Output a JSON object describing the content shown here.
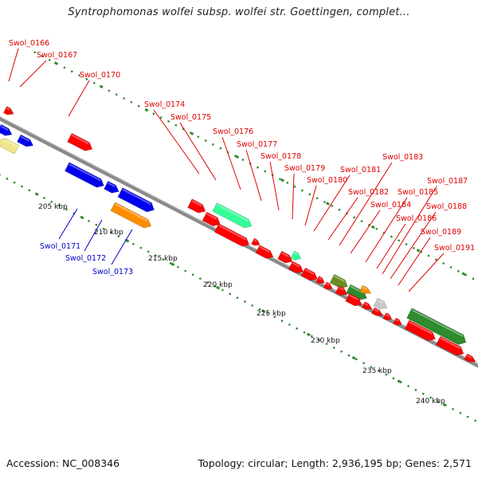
{
  "title": "Syntrophomonas wolfei subsp. wolfei str. Goettingen, complet...",
  "footer": {
    "accession": "Accession: NC_008346",
    "summary": "Topology: circular; Length: 2,936,195 bp; Genes: 2,571"
  },
  "colors": {
    "top_label": "#e00000",
    "bottom_label": "#0000cc",
    "backbone": "#8a8a8a",
    "tick_dot": "#2e8b2e",
    "cds_red": "#ff0000",
    "blue": "#0000ee",
    "orange": "#ff8c00",
    "green": "#2e8b2e",
    "light_green": "#33ff99",
    "olive": "#6b8e23",
    "pale_yellow": "#f0e68c",
    "gray": "#c8c8c8"
  },
  "scale_labels": [
    "205 kbp",
    "210 kbp",
    "215 kbp",
    "220 kbp",
    "225 kbp",
    "230 kbp",
    "235 kbp",
    "240 kbp"
  ],
  "top_genes": [
    "Swol_0166",
    "Swol_0167",
    "Swol_0170",
    "Swol_0174",
    "Swol_0175",
    "Swol_0176",
    "Swol_0177",
    "Swol_0178",
    "Swol_0179",
    "Swol_0180",
    "Swol_0181",
    "Swol_0182",
    "Swol_0183",
    "Swol_0184",
    "Swol_0185",
    "Swol_0186",
    "Swol_0187",
    "Swol_0188",
    "Swol_0189",
    "Swol_0191"
  ],
  "bottom_genes": [
    "Swol_0171",
    "Swol_0172",
    "Swol_0173"
  ]
}
